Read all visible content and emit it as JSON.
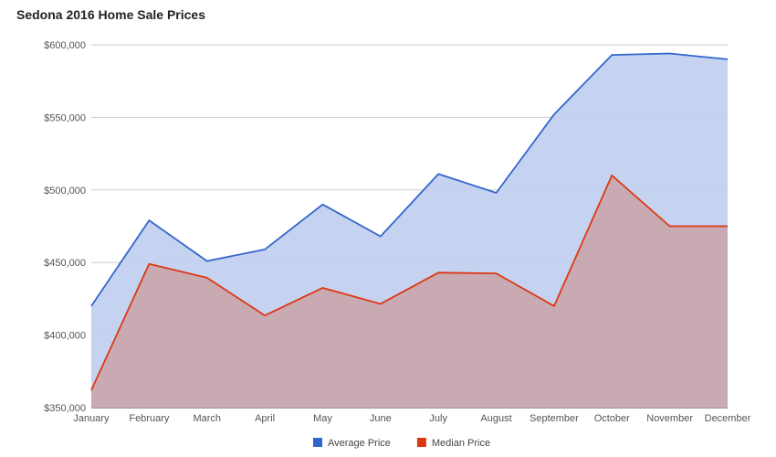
{
  "chart_data": {
    "type": "area",
    "title": "Sedona 2016 Home Sale Prices",
    "categories": [
      "January",
      "February",
      "March",
      "April",
      "May",
      "June",
      "July",
      "August",
      "September",
      "October",
      "November",
      "December"
    ],
    "series": [
      {
        "name": "Average Price",
        "color": "#3366cc",
        "fill": "#c2d1f0",
        "values": [
          420000,
          479000,
          451000,
          459000,
          490000,
          468000,
          511000,
          498000,
          552000,
          593000,
          594000,
          590000
        ]
      },
      {
        "name": "Median Price",
        "color": "#dc3912",
        "fill": "#c9a4ab",
        "values": [
          362000,
          449000,
          439500,
          413500,
          432500,
          421500,
          443000,
          442500,
          420000,
          510000,
          475000,
          475000
        ]
      }
    ],
    "y_ticks": [
      "$600,000",
      "$550,000",
      "$500,000",
      "$450,000",
      "$400,000",
      "$350,000"
    ],
    "ylim": [
      350000,
      600000
    ],
    "grid": true,
    "legend_position": "bottom"
  }
}
